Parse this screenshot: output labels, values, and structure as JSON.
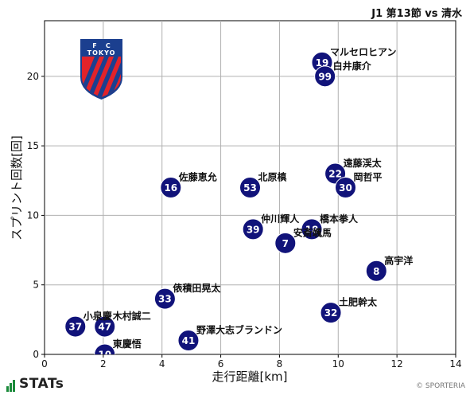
{
  "header": {
    "title": "J1 第13節 vs 清水"
  },
  "footer": {
    "brand": "STATs",
    "copyright": "© SPORTERIA"
  },
  "logo": {
    "top_text": "F    C",
    "name": "TOKYO",
    "colors": {
      "blue": "#1b3f8f",
      "red": "#e2232a"
    }
  },
  "chart_data": {
    "type": "scatter",
    "xlabel": "走行距離[km]",
    "ylabel": "スプリント回数[回]",
    "xlim": [
      0,
      14
    ],
    "ylim": [
      0,
      24
    ],
    "xticks": [
      0,
      2,
      4,
      6,
      8,
      10,
      12,
      14
    ],
    "yticks": [
      0,
      5,
      10,
      15,
      20
    ],
    "grid": true,
    "marker_color": "#11137a",
    "points": [
      {
        "number": "19",
        "name": "マルセロヒアン",
        "x": 9.45,
        "y": 21
      },
      {
        "number": "99",
        "name": "白井康介",
        "x": 9.55,
        "y": 20
      },
      {
        "number": "22",
        "name": "遠藤渓太",
        "x": 9.9,
        "y": 13
      },
      {
        "number": "30",
        "name": "岡哲平",
        "x": 10.25,
        "y": 12
      },
      {
        "number": "16",
        "name": "佐藤恵允",
        "x": 4.3,
        "y": 12
      },
      {
        "number": "53",
        "name": "北原槙",
        "x": 7.0,
        "y": 12
      },
      {
        "number": "39",
        "name": "仲川輝人",
        "x": 7.1,
        "y": 9
      },
      {
        "number": "18",
        "name": "橋本拳人",
        "x": 9.1,
        "y": 9
      },
      {
        "number": "7",
        "name": "安斎颯馬",
        "x": 8.2,
        "y": 8
      },
      {
        "number": "8",
        "name": "高宇洋",
        "x": 11.3,
        "y": 6
      },
      {
        "number": "33",
        "name": "俵積田晃太",
        "x": 4.1,
        "y": 4
      },
      {
        "number": "32",
        "name": "土肥幹太",
        "x": 9.75,
        "y": 3
      },
      {
        "number": "37",
        "name": "小泉慶",
        "x": 1.05,
        "y": 2
      },
      {
        "number": "47",
        "name": "木村誠二",
        "x": 2.05,
        "y": 2
      },
      {
        "number": "41",
        "name": "野澤大志ブランドン",
        "x": 4.9,
        "y": 1
      },
      {
        "number": "10",
        "name": "東慶悟",
        "x": 2.05,
        "y": 0
      }
    ]
  }
}
